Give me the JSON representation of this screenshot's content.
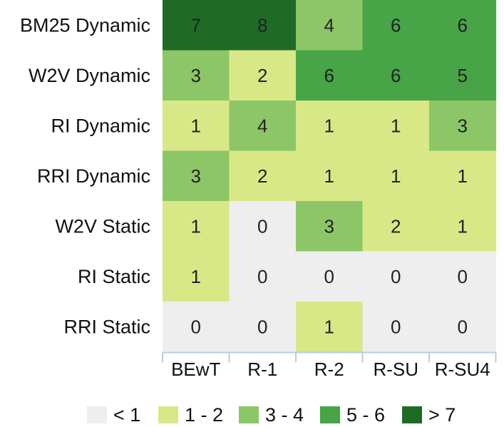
{
  "chart_data": {
    "type": "heatmap",
    "rows": [
      "BM25 Dynamic",
      "W2V Dynamic",
      "RI Dynamic",
      "RRI Dynamic",
      "W2V Static",
      "RI Static",
      "RRI Static"
    ],
    "columns": [
      "BEwT",
      "R-1",
      "R-2",
      "R-SU",
      "R-SU4"
    ],
    "values": [
      [
        7,
        8,
        4,
        6,
        6
      ],
      [
        3,
        2,
        6,
        6,
        5
      ],
      [
        1,
        4,
        1,
        1,
        3
      ],
      [
        3,
        2,
        1,
        1,
        1
      ],
      [
        1,
        0,
        3,
        2,
        1
      ],
      [
        1,
        0,
        0,
        0,
        0
      ],
      [
        0,
        0,
        1,
        0,
        0
      ]
    ],
    "legend": [
      {
        "label": "< 1",
        "min": null,
        "max": 1,
        "color": "#eeeeee"
      },
      {
        "label": "1 - 2",
        "min": 1,
        "max": 2,
        "color": "#d9e886"
      },
      {
        "label": "3 - 4",
        "min": 3,
        "max": 4,
        "color": "#8dc666"
      },
      {
        "label": "5 - 6",
        "min": 5,
        "max": 6,
        "color": "#47a447"
      },
      {
        "label": "> 7",
        "min": 7,
        "max": null,
        "color": "#1f6b25"
      }
    ],
    "legend_placement": "bottom",
    "grid": false
  }
}
